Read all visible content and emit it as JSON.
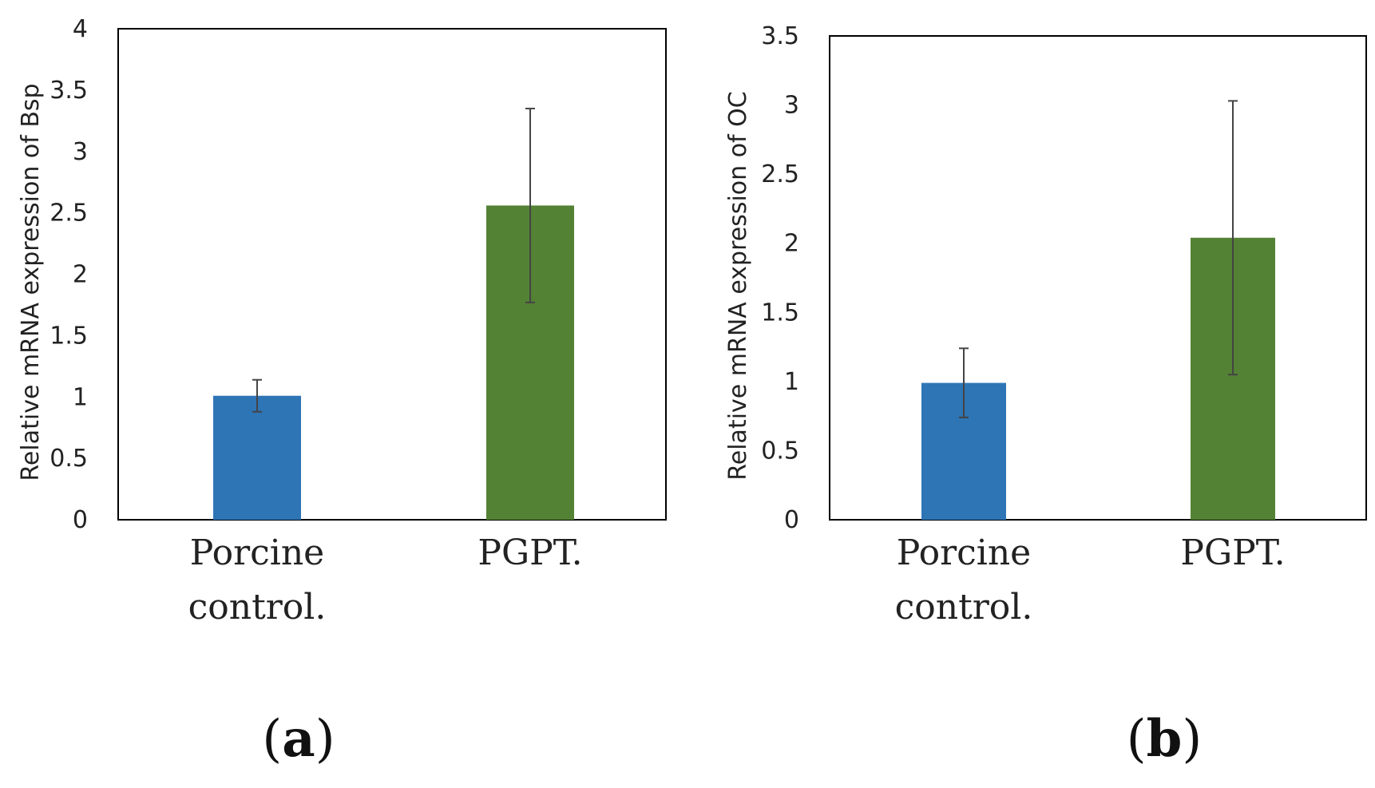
{
  "chart_data": [
    {
      "type": "bar",
      "panel_label": "a",
      "categories": [
        [
          "Porcine",
          "control."
        ],
        [
          "PGPT."
        ]
      ],
      "values": [
        1.01,
        2.56
      ],
      "error": [
        0.13,
        0.79
      ],
      "colors": [
        "#2e75b6",
        "#548235"
      ],
      "ylabel": "Relative mRNA expression of Bsp",
      "ylim": [
        0,
        4
      ],
      "yticks": [
        "0",
        "0.5",
        "1",
        "1.5",
        "2",
        "2.5",
        "3",
        "3.5",
        "4"
      ],
      "grid": false,
      "legend": "none"
    },
    {
      "type": "bar",
      "panel_label": "b",
      "categories": [
        [
          "Porcine",
          "control."
        ],
        [
          "PGPT."
        ]
      ],
      "values": [
        0.99,
        2.04
      ],
      "error": [
        0.25,
        0.99
      ],
      "colors": [
        "#2e75b6",
        "#548235"
      ],
      "ylabel": "Relative mRNA expression of OC",
      "ylim": [
        0,
        3.5
      ],
      "yticks": [
        "0",
        "0.5",
        "1",
        "1.5",
        "2",
        "2.5",
        "3",
        "3.5"
      ],
      "grid": false,
      "legend": "none"
    }
  ]
}
